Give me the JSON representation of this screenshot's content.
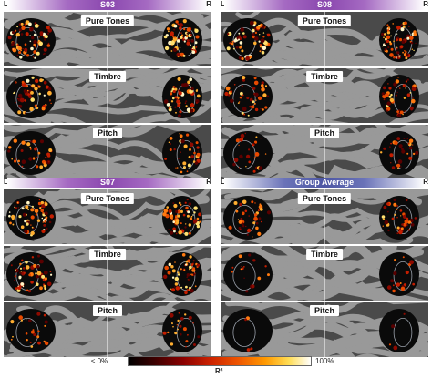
{
  "panels": [
    {
      "title": "S03",
      "style": "purple",
      "left": "L",
      "right": "R",
      "rows": [
        {
          "label": "Pure Tones",
          "density": 0.9
        },
        {
          "label": "Timbre",
          "density": 0.75
        },
        {
          "label": "Pitch",
          "density": 0.45
        }
      ]
    },
    {
      "title": "S08",
      "style": "purple",
      "left": "L",
      "right": "R",
      "rows": [
        {
          "label": "Pure Tones",
          "density": 0.85
        },
        {
          "label": "Timbre",
          "density": 0.55
        },
        {
          "label": "Pitch",
          "density": 0.35
        }
      ]
    },
    {
      "title": "S07",
      "style": "purple",
      "left": "L",
      "right": "R",
      "rows": [
        {
          "label": "Pure Tones",
          "density": 0.8
        },
        {
          "label": "Timbre",
          "density": 0.7
        },
        {
          "label": "Pitch",
          "density": 0.3
        }
      ]
    },
    {
      "title": "Group Average",
      "style": "blue",
      "left": "L",
      "right": "R",
      "rows": [
        {
          "label": "Pure Tones",
          "density": 0.5
        },
        {
          "label": "Timbre",
          "density": 0.2
        },
        {
          "label": "Pitch",
          "density": 0.05
        }
      ]
    }
  ],
  "colorbar": {
    "min_label": "≤ 0%",
    "max_label": "100%",
    "unit": "R²"
  },
  "colors": {
    "sulcus": "#4a4a4a",
    "gyrus": "#999999",
    "roi": "#0a0a0a",
    "outline": "#9aa0aa"
  }
}
